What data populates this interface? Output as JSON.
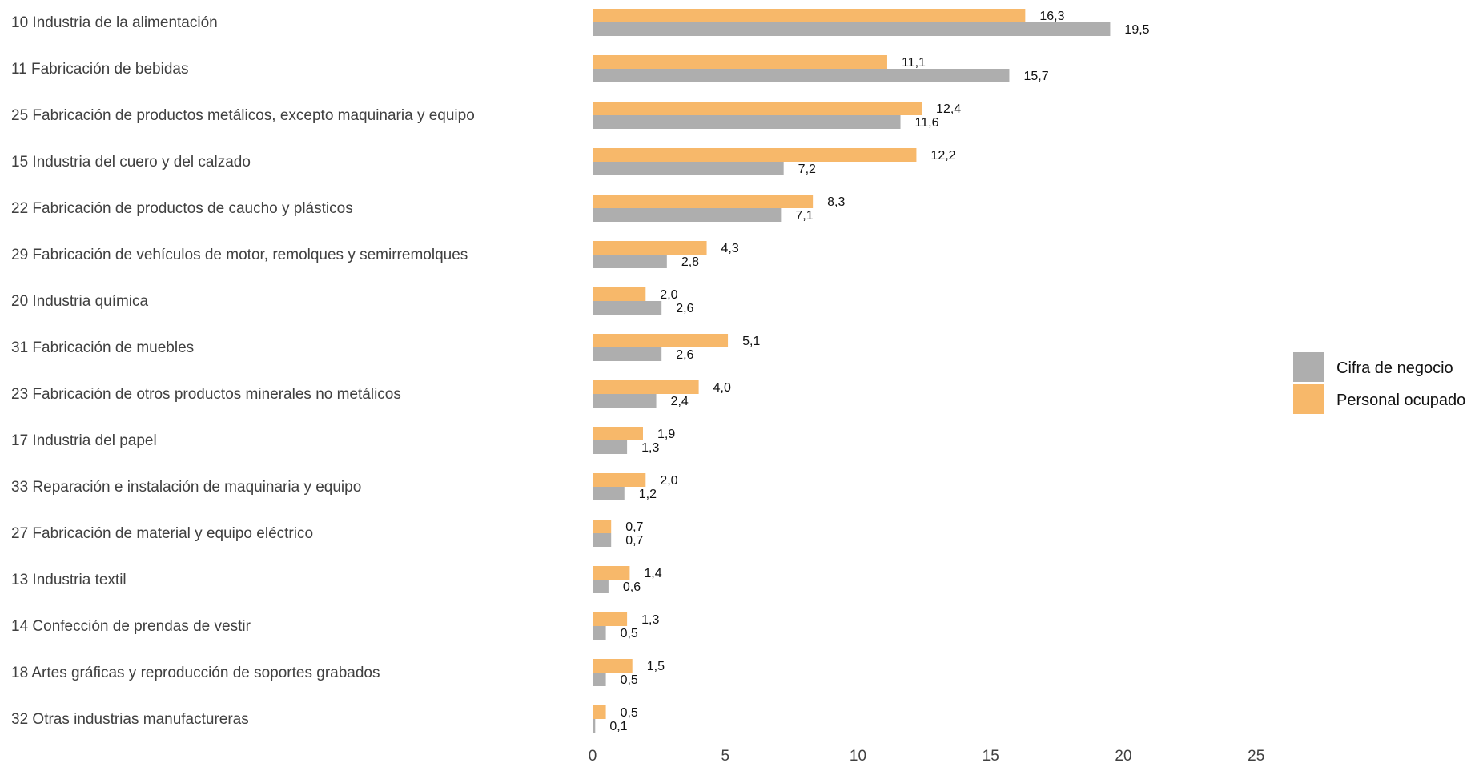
{
  "chart_data": {
    "type": "bar",
    "orientation": "horizontal",
    "categories": [
      "10 Industria de la alimentación",
      "11 Fabricación de bebidas",
      "25 Fabricación de productos metálicos, excepto maquinaria y equipo",
      "15 Industria del cuero y del calzado",
      "22 Fabricación de productos de caucho y plásticos",
      "29 Fabricación de vehículos de motor, remolques y semirremolques",
      "20 Industria química",
      "31 Fabricación de muebles",
      "23 Fabricación de otros productos minerales no metálicos",
      "17 Industria del papel",
      "33 Reparación e instalación de maquinaria y equipo",
      "27 Fabricación de material y equipo eléctrico",
      "13 Industria textil",
      "14 Confección de prendas de vestir",
      "18 Artes gráficas y reproducción de soportes grabados",
      "32 Otras industrias manufactureras"
    ],
    "series": [
      {
        "name": "Personal ocupado",
        "color": "#F7B86A",
        "values": [
          16.3,
          11.1,
          12.4,
          12.2,
          8.3,
          4.3,
          2.0,
          5.1,
          4.0,
          1.9,
          2.0,
          0.7,
          1.4,
          1.3,
          1.5,
          0.5
        ],
        "labels": [
          "16,3",
          "11,1",
          "12,4",
          "12,2",
          "8,3",
          "4,3",
          "2,0",
          "5,1",
          "4,0",
          "1,9",
          "2,0",
          "0,7",
          "1,4",
          "1,3",
          "1,5",
          "0,5"
        ]
      },
      {
        "name": "Cifra de negocio",
        "color": "#AEAEAE",
        "values": [
          19.5,
          15.7,
          11.6,
          7.2,
          7.1,
          2.8,
          2.6,
          2.6,
          2.4,
          1.3,
          1.2,
          0.7,
          0.6,
          0.5,
          0.5,
          0.1
        ],
        "labels": [
          "19,5",
          "15,7",
          "11,6",
          "7,2",
          "7,1",
          "2,8",
          "2,6",
          "2,6",
          "2,4",
          "1,3",
          "1,2",
          "0,7",
          "0,6",
          "0,5",
          "0,5",
          "0,1"
        ]
      }
    ],
    "xlim": [
      0,
      25
    ],
    "xticks": [
      0,
      5,
      10,
      15,
      20,
      25
    ],
    "xtick_labels": [
      "0",
      "5",
      "10",
      "15",
      "20",
      "25"
    ],
    "grid": false,
    "legend": {
      "placement": "right",
      "entries": [
        "Cifra de negocio",
        "Personal ocupado"
      ]
    }
  }
}
